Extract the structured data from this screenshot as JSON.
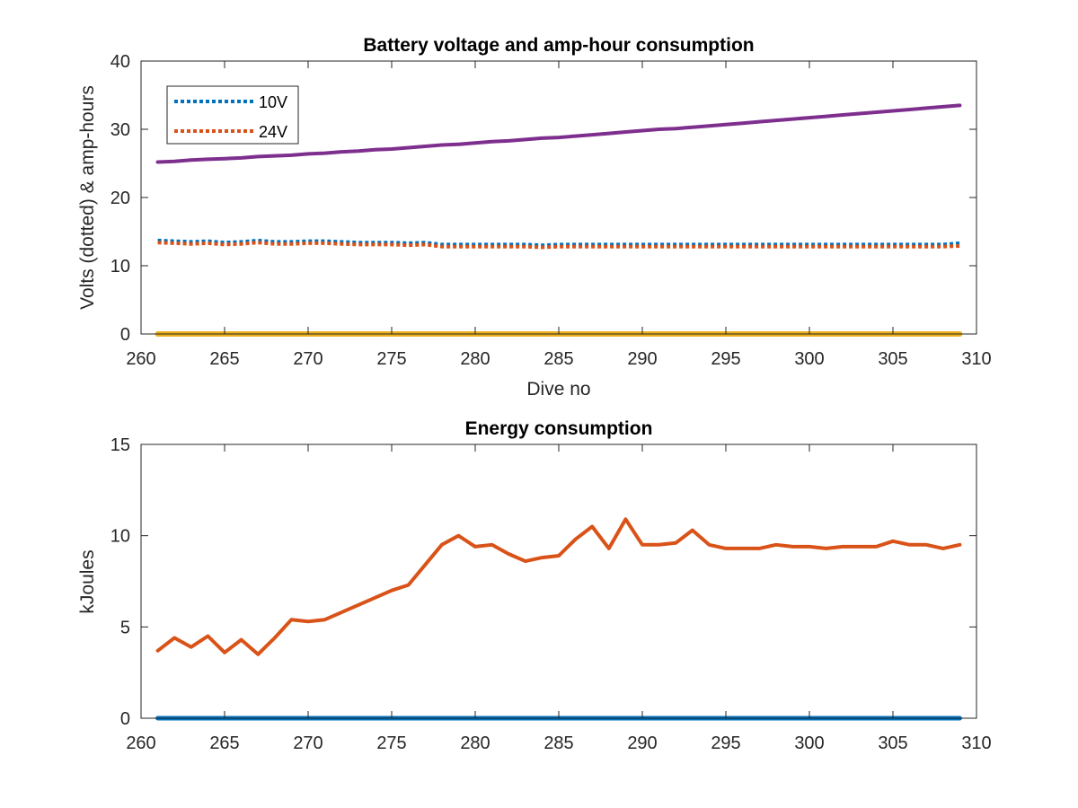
{
  "colors": {
    "series_10v": "#0072BD",
    "series_24v": "#D95319",
    "amp_hours": "#7E2F8E",
    "baseline": "#EDB120",
    "energy": "#D95319",
    "energy_baseline": "#0072BD"
  },
  "chart_data": [
    {
      "type": "line",
      "title": "Battery voltage and amp-hour consumption",
      "xlabel": "Dive no",
      "ylabel": "Volts (dotted) & amp-hours",
      "xlim": [
        260,
        310
      ],
      "ylim": [
        0,
        40
      ],
      "xticks": [
        "260",
        "265",
        "270",
        "275",
        "280",
        "285",
        "290",
        "295",
        "300",
        "305",
        "310"
      ],
      "yticks": [
        "0",
        "10",
        "20",
        "30",
        "40"
      ],
      "grid": false,
      "legend_position": "top-left",
      "x": [
        261,
        262,
        263,
        264,
        265,
        266,
        267,
        268,
        269,
        270,
        271,
        272,
        273,
        274,
        275,
        276,
        277,
        278,
        279,
        280,
        281,
        282,
        283,
        284,
        285,
        286,
        287,
        288,
        289,
        290,
        291,
        292,
        293,
        294,
        295,
        296,
        297,
        298,
        299,
        300,
        301,
        302,
        303,
        304,
        305,
        306,
        307,
        308,
        309
      ],
      "series": [
        {
          "name": "10V",
          "style": "dotted",
          "values": [
            13.7,
            13.6,
            13.5,
            13.6,
            13.4,
            13.5,
            13.7,
            13.5,
            13.5,
            13.6,
            13.6,
            13.5,
            13.4,
            13.4,
            13.4,
            13.3,
            13.4,
            13.1,
            13.1,
            13.1,
            13.1,
            13.1,
            13.1,
            13.0,
            13.1,
            13.1,
            13.1,
            13.1,
            13.1,
            13.1,
            13.1,
            13.1,
            13.1,
            13.1,
            13.1,
            13.1,
            13.1,
            13.1,
            13.1,
            13.1,
            13.1,
            13.1,
            13.1,
            13.1,
            13.1,
            13.1,
            13.1,
            13.1,
            13.3
          ]
        },
        {
          "name": "24V",
          "style": "dotted",
          "values": [
            13.4,
            13.3,
            13.2,
            13.3,
            13.1,
            13.2,
            13.4,
            13.2,
            13.2,
            13.3,
            13.3,
            13.2,
            13.1,
            13.1,
            13.1,
            13.0,
            13.1,
            12.8,
            12.8,
            12.8,
            12.8,
            12.8,
            12.8,
            12.7,
            12.8,
            12.8,
            12.8,
            12.8,
            12.8,
            12.8,
            12.8,
            12.8,
            12.8,
            12.8,
            12.8,
            12.8,
            12.8,
            12.8,
            12.8,
            12.8,
            12.8,
            12.8,
            12.8,
            12.8,
            12.8,
            12.8,
            12.8,
            12.8,
            12.9
          ]
        },
        {
          "style": "solid",
          "values": [
            25.2,
            25.3,
            25.5,
            25.6,
            25.7,
            25.8,
            26.0,
            26.1,
            26.2,
            26.4,
            26.5,
            26.7,
            26.8,
            27.0,
            27.1,
            27.3,
            27.5,
            27.7,
            27.8,
            28.0,
            28.2,
            28.3,
            28.5,
            28.7,
            28.8,
            29.0,
            29.2,
            29.4,
            29.6,
            29.8,
            30.0,
            30.1,
            30.3,
            30.5,
            30.7,
            30.9,
            31.1,
            31.3,
            31.5,
            31.7,
            31.9,
            32.1,
            32.3,
            32.5,
            32.7,
            32.9,
            33.1,
            33.3,
            33.5
          ]
        },
        {
          "style": "solid",
          "values": [
            0,
            0,
            0,
            0,
            0,
            0,
            0,
            0,
            0,
            0,
            0,
            0,
            0,
            0,
            0,
            0,
            0,
            0,
            0,
            0,
            0,
            0,
            0,
            0,
            0,
            0,
            0,
            0,
            0,
            0,
            0,
            0,
            0,
            0,
            0,
            0,
            0,
            0,
            0,
            0,
            0,
            0,
            0,
            0,
            0,
            0,
            0,
            0,
            0
          ]
        }
      ]
    },
    {
      "type": "line",
      "title": "Energy consumption",
      "xlabel": "",
      "ylabel": "kJoules",
      "xlim": [
        260,
        310
      ],
      "ylim": [
        0,
        15
      ],
      "xticks": [
        "260",
        "265",
        "270",
        "275",
        "280",
        "285",
        "290",
        "295",
        "300",
        "305",
        "310"
      ],
      "yticks": [
        "0",
        "5",
        "10",
        "15"
      ],
      "grid": false,
      "x": [
        261,
        262,
        263,
        264,
        265,
        266,
        267,
        268,
        269,
        270,
        271,
        272,
        273,
        274,
        275,
        276,
        277,
        278,
        279,
        280,
        281,
        282,
        283,
        284,
        285,
        286,
        287,
        288,
        289,
        290,
        291,
        292,
        293,
        294,
        295,
        296,
        297,
        298,
        299,
        300,
        301,
        302,
        303,
        304,
        305,
        306,
        307,
        308,
        309
      ],
      "series": [
        {
          "style": "solid",
          "values": [
            3.7,
            4.4,
            3.9,
            4.5,
            3.6,
            4.3,
            3.5,
            4.4,
            5.4,
            5.3,
            5.4,
            5.8,
            6.2,
            6.6,
            7.0,
            7.3,
            8.4,
            9.5,
            10.0,
            9.4,
            9.5,
            9.0,
            8.6,
            8.8,
            8.9,
            9.8,
            10.5,
            9.3,
            10.9,
            9.5,
            9.5,
            9.6,
            10.3,
            9.5,
            9.3,
            9.3,
            9.3,
            9.5,
            9.4,
            9.4,
            9.3,
            9.4,
            9.4,
            9.4,
            9.7,
            9.5,
            9.5,
            9.3,
            9.5
          ]
        },
        {
          "style": "solid",
          "values": [
            0,
            0,
            0,
            0,
            0,
            0,
            0,
            0,
            0,
            0,
            0,
            0,
            0,
            0,
            0,
            0,
            0,
            0,
            0,
            0,
            0,
            0,
            0,
            0,
            0,
            0,
            0,
            0,
            0,
            0,
            0,
            0,
            0,
            0,
            0,
            0,
            0,
            0,
            0,
            0,
            0,
            0,
            0,
            0,
            0,
            0,
            0,
            0,
            0
          ]
        }
      ]
    }
  ]
}
